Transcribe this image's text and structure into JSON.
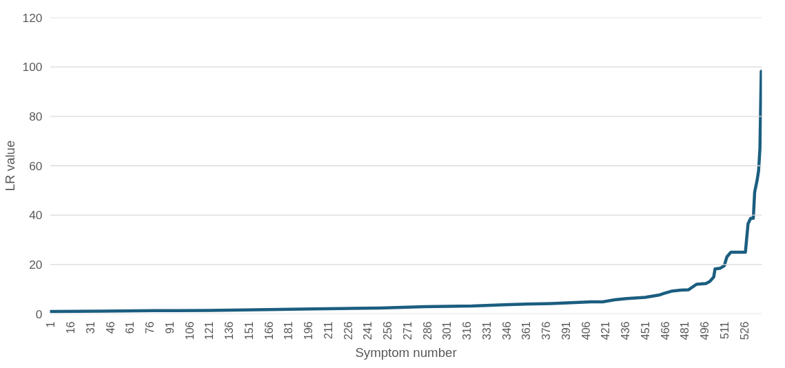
{
  "chart_data": {
    "type": "line",
    "xlabel": "Symptom number",
    "ylabel": "LR value",
    "xlim": [
      0.5,
      539.5
    ],
    "xticks": [
      1,
      16,
      31,
      46,
      61,
      76,
      91,
      106,
      121,
      136,
      151,
      166,
      181,
      196,
      211,
      226,
      241,
      256,
      271,
      286,
      301,
      316,
      331,
      346,
      361,
      376,
      391,
      406,
      421,
      436,
      451,
      466,
      481,
      496,
      511,
      526
    ],
    "ylim": [
      0,
      120
    ],
    "yticks": [
      0,
      20,
      40,
      60,
      80,
      100,
      120
    ],
    "grid": "y",
    "marker": "none",
    "line_style": "solid",
    "series": [
      {
        "color": "#1b5e80",
        "x": [
          1,
          40,
          80,
          120,
          148,
          200,
          250,
          284,
          320,
          348,
          380,
          410,
          419,
          428,
          437,
          451,
          462,
          466,
          471,
          478,
          484,
          490,
          497,
          500,
          503,
          504,
          508,
          511,
          513,
          516,
          527,
          529,
          531,
          533,
          534,
          536,
          537,
          538,
          539
        ],
        "values": [
          1.0,
          1.1,
          1.3,
          1.4,
          1.6,
          2.0,
          2.4,
          2.9,
          3.2,
          3.8,
          4.2,
          4.9,
          4.9,
          5.7,
          6.2,
          6.7,
          7.7,
          8.4,
          9.2,
          9.6,
          9.8,
          12.0,
          12.3,
          13.1,
          14.9,
          18.2,
          18.5,
          19.5,
          23.1,
          25.0,
          25.0,
          36.5,
          38.7,
          38.7,
          49.3,
          54.5,
          58.1,
          67,
          98.2
        ]
      }
    ]
  }
}
